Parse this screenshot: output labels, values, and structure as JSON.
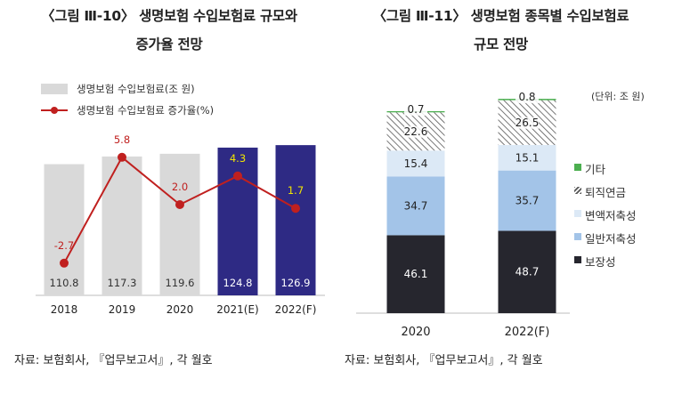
{
  "charts": [
    {
      "title_line1": "〈그림 Ⅲ-10〉 생명보험 수입보험료 규모와",
      "title_line2": "증가율 전망",
      "legend": {
        "bar_label": "생명보험 수입보험료(조 원)",
        "line_label": "생명보험 수입보험료 증가율(%)"
      },
      "source": "자료: 보험회사, 『업무보고서』, 각 월호"
    },
    {
      "title_line1": "〈그림 Ⅲ-11〉 생명보험 종목별 수입보험료",
      "title_line2": "규모 전망",
      "unit": "(단위: 조 원)",
      "source": "자료: 보험회사, 『업무보고서』, 각 월호"
    }
  ],
  "chart_data": [
    {
      "type": "bar",
      "categories": [
        "2018",
        "2019",
        "2020",
        "2021(E)",
        "2022(F)"
      ],
      "series": [
        {
          "name": "생명보험 수입보험료(조 원)",
          "type": "bar",
          "values": [
            110.8,
            117.3,
            119.6,
            124.8,
            126.9
          ]
        },
        {
          "name": "생명보험 수입보험료 증가율(%)",
          "type": "line",
          "values": [
            -2.7,
            5.8,
            2.0,
            4.3,
            1.7
          ]
        }
      ],
      "value_labels_bar": [
        "110.8",
        "117.3",
        "119.6",
        "124.8",
        "126.9"
      ],
      "value_labels_line": [
        "-2.7",
        "5.8",
        "2.0",
        "4.3",
        "1.7"
      ],
      "colors": {
        "actual_bar": "#d9d9d9",
        "forecast_bar": "#2e2a84",
        "line": "#c0201f",
        "forecast_label": "#f2e600"
      },
      "ylim": [
        0,
        130
      ],
      "ylim_line": [
        -4,
        8
      ],
      "grid": false
    },
    {
      "type": "bar",
      "stacked": true,
      "categories": [
        "2020",
        "2022(F)"
      ],
      "series": [
        {
          "name": "보장성",
          "values": [
            46.1,
            48.7
          ],
          "labels": [
            "46.1",
            "48.7"
          ],
          "color": "#26262e",
          "text_color": "#ffffff"
        },
        {
          "name": "일반저축성",
          "values": [
            34.7,
            35.7
          ],
          "labels": [
            "34.7",
            "35.7"
          ],
          "color": "#a3c4e8",
          "text_color": "#222222"
        },
        {
          "name": "변액저축성",
          "values": [
            15.4,
            15.1
          ],
          "labels": [
            "15.4",
            "15.1"
          ],
          "color": "#dce9f6",
          "text_color": "#222222"
        },
        {
          "name": "퇴직연금",
          "values": [
            22.6,
            26.5
          ],
          "labels": [
            "22.6",
            "26.5"
          ],
          "color": "hatch",
          "text_color": "#222222"
        },
        {
          "name": "기타",
          "values": [
            0.7,
            0.8
          ],
          "labels": [
            "0.7",
            "0.8"
          ],
          "color": "#4caf50",
          "text_color": "#222222"
        }
      ],
      "legend_order": [
        "기타",
        "퇴직연금",
        "변액저축성",
        "일반저축성",
        "보장성"
      ],
      "legend_placement": "right",
      "ylim": [
        0,
        130
      ],
      "grid": false
    }
  ]
}
